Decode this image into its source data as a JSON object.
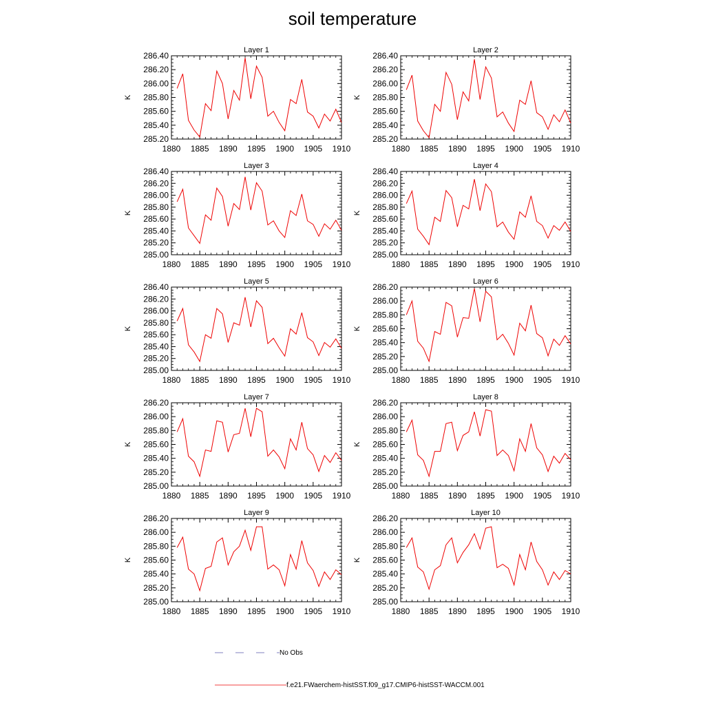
{
  "title": "soil temperature",
  "colors": {
    "model": "#ee0000",
    "obs": "#5555aa",
    "axis": "#000000"
  },
  "legend": {
    "obs_label": "No Obs",
    "model_label": "f.e21.FWaerchem-histSST.f09_g17.CMIP6-histSST-WACCM.001"
  },
  "chart_data": [
    {
      "type": "line",
      "title": "Layer 1",
      "ylabel": "K",
      "xlabel": "",
      "xlim": [
        1880,
        1910
      ],
      "ylim": [
        285.2,
        286.4
      ],
      "xticks": [
        "1880",
        "1885",
        "1890",
        "1895",
        "1900",
        "1905",
        "1910"
      ],
      "yticks": [
        "285.20",
        "285.40",
        "285.60",
        "285.80",
        "286.00",
        "286.20",
        "286.40"
      ],
      "x": [
        1881,
        1882,
        1883,
        1884,
        1885,
        1886,
        1887,
        1888,
        1889,
        1890,
        1891,
        1892,
        1893,
        1894,
        1895,
        1896,
        1897,
        1898,
        1899,
        1900,
        1901,
        1902,
        1903,
        1904,
        1905,
        1906,
        1907,
        1908,
        1909,
        1910
      ],
      "series": [
        {
          "values": [
            285.93,
            286.14,
            285.47,
            285.33,
            285.23,
            285.71,
            285.61,
            286.18,
            286.0,
            285.49,
            285.9,
            285.76,
            286.37,
            285.78,
            286.25,
            286.09,
            285.53,
            285.6,
            285.44,
            285.32,
            285.77,
            285.71,
            286.06,
            285.59,
            285.53,
            285.36,
            285.56,
            285.46,
            285.63,
            285.44
          ]
        }
      ]
    },
    {
      "type": "line",
      "title": "Layer 2",
      "ylabel": "K",
      "xlabel": "",
      "xlim": [
        1880,
        1910
      ],
      "ylim": [
        285.2,
        286.4
      ],
      "xticks": [
        "1880",
        "1885",
        "1890",
        "1895",
        "1900",
        "1905",
        "1910"
      ],
      "yticks": [
        "285.20",
        "285.40",
        "285.60",
        "285.80",
        "286.00",
        "286.20",
        "286.40"
      ],
      "x": [
        1881,
        1882,
        1883,
        1884,
        1885,
        1886,
        1887,
        1888,
        1889,
        1890,
        1891,
        1892,
        1893,
        1894,
        1895,
        1896,
        1897,
        1898,
        1899,
        1900,
        1901,
        1902,
        1903,
        1904,
        1905,
        1906,
        1907,
        1908,
        1909,
        1910
      ],
      "series": [
        {
          "values": [
            285.91,
            286.12,
            285.46,
            285.32,
            285.22,
            285.7,
            285.6,
            286.16,
            285.99,
            285.48,
            285.88,
            285.75,
            286.35,
            285.77,
            286.24,
            286.08,
            285.52,
            285.59,
            285.43,
            285.31,
            285.76,
            285.7,
            286.04,
            285.58,
            285.52,
            285.34,
            285.55,
            285.45,
            285.62,
            285.43
          ]
        }
      ]
    },
    {
      "type": "line",
      "title": "Layer 3",
      "ylabel": "K",
      "xlabel": "",
      "xlim": [
        1880,
        1910
      ],
      "ylim": [
        285.0,
        286.4
      ],
      "xticks": [
        "1880",
        "1885",
        "1890",
        "1895",
        "1900",
        "1905",
        "1910"
      ],
      "yticks": [
        "285.00",
        "285.20",
        "285.40",
        "285.60",
        "285.80",
        "286.00",
        "286.20",
        "286.40"
      ],
      "x": [
        1881,
        1882,
        1883,
        1884,
        1885,
        1886,
        1887,
        1888,
        1889,
        1890,
        1891,
        1892,
        1893,
        1894,
        1895,
        1896,
        1897,
        1898,
        1899,
        1900,
        1901,
        1902,
        1903,
        1904,
        1905,
        1906,
        1907,
        1908,
        1909,
        1910
      ],
      "series": [
        {
          "values": [
            285.89,
            286.1,
            285.45,
            285.32,
            285.19,
            285.67,
            285.58,
            286.12,
            285.98,
            285.48,
            285.86,
            285.76,
            286.31,
            285.75,
            286.21,
            286.07,
            285.5,
            285.57,
            285.4,
            285.29,
            285.74,
            285.66,
            286.02,
            285.57,
            285.51,
            285.31,
            285.52,
            285.43,
            285.58,
            285.41
          ]
        }
      ]
    },
    {
      "type": "line",
      "title": "Layer 4",
      "ylabel": "K",
      "xlabel": "",
      "xlim": [
        1880,
        1910
      ],
      "ylim": [
        285.0,
        286.4
      ],
      "xticks": [
        "1880",
        "1885",
        "1890",
        "1895",
        "1900",
        "1905",
        "1910"
      ],
      "yticks": [
        "285.00",
        "285.20",
        "285.40",
        "285.60",
        "285.80",
        "286.00",
        "286.20",
        "286.40"
      ],
      "x": [
        1881,
        1882,
        1883,
        1884,
        1885,
        1886,
        1887,
        1888,
        1889,
        1890,
        1891,
        1892,
        1893,
        1894,
        1895,
        1896,
        1897,
        1898,
        1899,
        1900,
        1901,
        1902,
        1903,
        1904,
        1905,
        1906,
        1907,
        1908,
        1909,
        1910
      ],
      "series": [
        {
          "values": [
            285.86,
            286.07,
            285.43,
            285.31,
            285.17,
            285.63,
            285.56,
            286.08,
            285.96,
            285.47,
            285.83,
            285.77,
            286.27,
            285.74,
            286.19,
            286.06,
            285.47,
            285.55,
            285.38,
            285.26,
            285.72,
            285.63,
            285.99,
            285.56,
            285.49,
            285.28,
            285.49,
            285.41,
            285.55,
            285.39
          ]
        }
      ]
    },
    {
      "type": "line",
      "title": "Layer 5",
      "ylabel": "K",
      "xlabel": "",
      "xlim": [
        1880,
        1910
      ],
      "ylim": [
        285.0,
        286.4
      ],
      "xticks": [
        "1880",
        "1885",
        "1890",
        "1895",
        "1900",
        "1905",
        "1910"
      ],
      "yticks": [
        "285.00",
        "285.20",
        "285.40",
        "285.60",
        "285.80",
        "286.00",
        "286.20",
        "286.40"
      ],
      "x": [
        1881,
        1882,
        1883,
        1884,
        1885,
        1886,
        1887,
        1888,
        1889,
        1890,
        1891,
        1892,
        1893,
        1894,
        1895,
        1896,
        1897,
        1898,
        1899,
        1900,
        1901,
        1902,
        1903,
        1904,
        1905,
        1906,
        1907,
        1908,
        1909,
        1910
      ],
      "series": [
        {
          "values": [
            285.83,
            286.04,
            285.43,
            285.31,
            285.15,
            285.6,
            285.54,
            286.04,
            285.95,
            285.47,
            285.8,
            285.76,
            286.23,
            285.73,
            286.17,
            286.06,
            285.45,
            285.54,
            285.38,
            285.24,
            285.7,
            285.61,
            285.97,
            285.55,
            285.48,
            285.25,
            285.47,
            285.39,
            285.53,
            285.37
          ]
        }
      ]
    },
    {
      "type": "line",
      "title": "Layer 6",
      "ylabel": "K",
      "xlabel": "",
      "xlim": [
        1880,
        1910
      ],
      "ylim": [
        285.0,
        286.2
      ],
      "xticks": [
        "1880",
        "1885",
        "1890",
        "1895",
        "1900",
        "1905",
        "1910"
      ],
      "yticks": [
        "285.00",
        "285.20",
        "285.40",
        "285.60",
        "285.80",
        "286.00",
        "286.20"
      ],
      "x": [
        1881,
        1882,
        1883,
        1884,
        1885,
        1886,
        1887,
        1888,
        1889,
        1890,
        1891,
        1892,
        1893,
        1894,
        1895,
        1896,
        1897,
        1898,
        1899,
        1900,
        1901,
        1902,
        1903,
        1904,
        1905,
        1906,
        1907,
        1908,
        1909,
        1910
      ],
      "series": [
        {
          "values": [
            285.8,
            286.0,
            285.42,
            285.32,
            285.13,
            285.56,
            285.52,
            285.98,
            285.93,
            285.48,
            285.76,
            285.75,
            286.18,
            285.7,
            286.14,
            286.06,
            285.44,
            285.52,
            285.39,
            285.22,
            285.68,
            285.57,
            285.94,
            285.53,
            285.47,
            285.21,
            285.45,
            285.36,
            285.5,
            285.38
          ]
        }
      ]
    },
    {
      "type": "line",
      "title": "Layer 7",
      "ylabel": "K",
      "xlabel": "",
      "xlim": [
        1880,
        1910
      ],
      "ylim": [
        285.0,
        286.2
      ],
      "xticks": [
        "1880",
        "1885",
        "1890",
        "1895",
        "1900",
        "1905",
        "1910"
      ],
      "yticks": [
        "285.00",
        "285.20",
        "285.40",
        "285.60",
        "285.80",
        "286.00",
        "286.20"
      ],
      "x": [
        1881,
        1882,
        1883,
        1884,
        1885,
        1886,
        1887,
        1888,
        1889,
        1890,
        1891,
        1892,
        1893,
        1894,
        1895,
        1896,
        1897,
        1898,
        1899,
        1900,
        1901,
        1902,
        1903,
        1904,
        1905,
        1906,
        1907,
        1908,
        1909,
        1910
      ],
      "series": [
        {
          "values": [
            285.78,
            285.97,
            285.43,
            285.35,
            285.14,
            285.52,
            285.5,
            285.94,
            285.92,
            285.49,
            285.74,
            285.76,
            286.12,
            285.71,
            286.12,
            286.07,
            285.43,
            285.52,
            285.42,
            285.25,
            285.68,
            285.52,
            285.92,
            285.54,
            285.45,
            285.21,
            285.44,
            285.34,
            285.48,
            285.37
          ]
        }
      ]
    },
    {
      "type": "line",
      "title": "Layer 8",
      "ylabel": "K",
      "xlabel": "",
      "xlim": [
        1880,
        1910
      ],
      "ylim": [
        285.0,
        286.2
      ],
      "xticks": [
        "1880",
        "1885",
        "1890",
        "1895",
        "1900",
        "1905",
        "1910"
      ],
      "yticks": [
        "285.00",
        "285.20",
        "285.40",
        "285.60",
        "285.80",
        "286.00",
        "286.20"
      ],
      "x": [
        1881,
        1882,
        1883,
        1884,
        1885,
        1886,
        1887,
        1888,
        1889,
        1890,
        1891,
        1892,
        1893,
        1894,
        1895,
        1896,
        1897,
        1898,
        1899,
        1900,
        1901,
        1902,
        1903,
        1904,
        1905,
        1906,
        1907,
        1908,
        1909,
        1910
      ],
      "series": [
        {
          "values": [
            285.78,
            285.95,
            285.45,
            285.37,
            285.14,
            285.5,
            285.5,
            285.9,
            285.92,
            285.51,
            285.73,
            285.78,
            286.07,
            285.72,
            286.1,
            286.08,
            285.44,
            285.52,
            285.44,
            285.22,
            285.68,
            285.5,
            285.9,
            285.55,
            285.45,
            285.21,
            285.43,
            285.33,
            285.47,
            285.38
          ]
        }
      ]
    },
    {
      "type": "line",
      "title": "Layer 9",
      "ylabel": "K",
      "xlabel": "",
      "xlim": [
        1880,
        1910
      ],
      "ylim": [
        285.0,
        286.2
      ],
      "xticks": [
        "1880",
        "1885",
        "1890",
        "1895",
        "1900",
        "1905",
        "1910"
      ],
      "yticks": [
        "285.00",
        "285.20",
        "285.40",
        "285.60",
        "285.80",
        "286.00",
        "286.20"
      ],
      "x": [
        1881,
        1882,
        1883,
        1884,
        1885,
        1886,
        1887,
        1888,
        1889,
        1890,
        1891,
        1892,
        1893,
        1894,
        1895,
        1896,
        1897,
        1898,
        1899,
        1900,
        1901,
        1902,
        1903,
        1904,
        1905,
        1906,
        1907,
        1908,
        1909,
        1910
      ],
      "series": [
        {
          "values": [
            285.78,
            285.93,
            285.47,
            285.4,
            285.16,
            285.48,
            285.51,
            285.86,
            285.92,
            285.53,
            285.72,
            285.8,
            286.03,
            285.74,
            286.08,
            286.08,
            285.47,
            285.53,
            285.46,
            285.23,
            285.68,
            285.47,
            285.88,
            285.56,
            285.45,
            285.22,
            285.43,
            285.32,
            285.46,
            285.39
          ]
        }
      ]
    },
    {
      "type": "line",
      "title": "Layer 10",
      "ylabel": "K",
      "xlabel": "",
      "xlim": [
        1880,
        1910
      ],
      "ylim": [
        285.0,
        286.2
      ],
      "xticks": [
        "1880",
        "1885",
        "1890",
        "1895",
        "1900",
        "1905",
        "1910"
      ],
      "yticks": [
        "285.00",
        "285.20",
        "285.40",
        "285.60",
        "285.80",
        "286.00",
        "286.20"
      ],
      "x": [
        1881,
        1882,
        1883,
        1884,
        1885,
        1886,
        1887,
        1888,
        1889,
        1890,
        1891,
        1892,
        1893,
        1894,
        1895,
        1896,
        1897,
        1898,
        1899,
        1900,
        1901,
        1902,
        1903,
        1904,
        1905,
        1906,
        1907,
        1908,
        1909,
        1910
      ],
      "series": [
        {
          "values": [
            285.78,
            285.92,
            285.5,
            285.43,
            285.18,
            285.46,
            285.52,
            285.82,
            285.92,
            285.56,
            285.71,
            285.82,
            285.98,
            285.76,
            286.06,
            286.08,
            285.49,
            285.54,
            285.48,
            285.24,
            285.68,
            285.46,
            285.86,
            285.58,
            285.46,
            285.24,
            285.43,
            285.32,
            285.45,
            285.4
          ]
        }
      ]
    }
  ]
}
